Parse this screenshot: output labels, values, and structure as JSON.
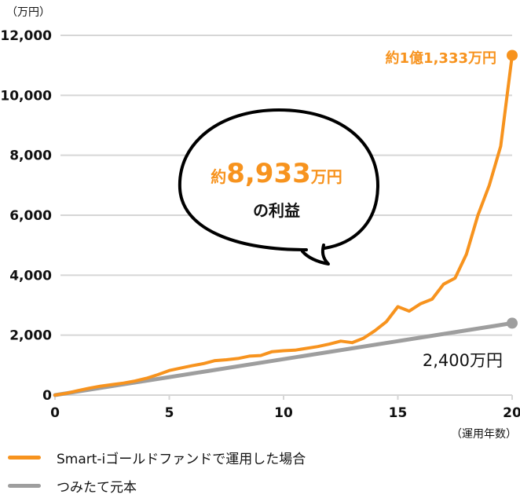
{
  "chart_data": {
    "type": "line",
    "title": "",
    "ylabel": "（万円）",
    "xlabel": "（運用年数）",
    "xlim": [
      0,
      20
    ],
    "ylim": [
      0,
      12000
    ],
    "x_ticks": [
      0,
      5,
      10,
      15,
      20
    ],
    "x_tick_labels": [
      "0",
      "5",
      "10",
      "15",
      "20"
    ],
    "y_ticks": [
      0,
      2000,
      4000,
      6000,
      8000,
      10000,
      12000
    ],
    "y_tick_labels": [
      "0",
      "2,000",
      "4,000",
      "6,000",
      "8,000",
      "10,000",
      "12,000"
    ],
    "grid": "horizontal",
    "legend_position": "bottom-left",
    "series": [
      {
        "name": "Smart-iゴールドファンドで運用した場合",
        "color": "#F7931E",
        "x": [
          0,
          0.5,
          1,
          1.5,
          2,
          2.5,
          3,
          3.5,
          4,
          4.5,
          5,
          5.5,
          6,
          6.5,
          7,
          7.5,
          8,
          8.5,
          9,
          9.5,
          10,
          10.5,
          11,
          11.5,
          12,
          12.5,
          13,
          13.5,
          14,
          14.5,
          15,
          15.5,
          16,
          16.5,
          17,
          17.5,
          18,
          18.5,
          19,
          19.5,
          20
        ],
        "values": [
          0,
          60,
          150,
          230,
          300,
          350,
          400,
          470,
          560,
          680,
          820,
          900,
          980,
          1050,
          1150,
          1180,
          1220,
          1300,
          1320,
          1450,
          1480,
          1500,
          1560,
          1620,
          1700,
          1800,
          1750,
          1900,
          2150,
          2450,
          2950,
          2800,
          3050,
          3200,
          3700,
          3900,
          4700,
          6000,
          7000,
          8300,
          11333
        ]
      },
      {
        "name": "つみたて元本",
        "color": "#9E9E9E",
        "x": [
          0,
          5,
          10,
          15,
          20
        ],
        "values": [
          0,
          600,
          1200,
          1800,
          2400
        ]
      }
    ],
    "annotations": [
      {
        "text": "約1億1,333万円",
        "x": 20,
        "y": 11333,
        "color": "#F7931E"
      },
      {
        "text": "2,400万円",
        "x": 20,
        "y": 2400,
        "color": "#111111"
      },
      {
        "text": "約8,933万円",
        "subtext": "の利益",
        "type": "speech-bubble"
      }
    ]
  },
  "labels": {
    "y_unit": "（万円）",
    "x_unit": "（運用年数）",
    "end_gold": "約1億1,333万円",
    "end_principal": "2,400万円",
    "bubble_prefix": "約",
    "bubble_value": "8,933",
    "bubble_suffix": "万円",
    "bubble_sub": "の利益"
  },
  "legend": [
    {
      "label": "Smart-iゴールドファンドで運用した場合",
      "color": "#F7931E"
    },
    {
      "label": "つみたて元本",
      "color": "#9E9E9E"
    }
  ],
  "colors": {
    "gold": "#F7931E",
    "principal": "#9E9E9E",
    "grid": "#D6D6D6",
    "text": "#111111"
  }
}
